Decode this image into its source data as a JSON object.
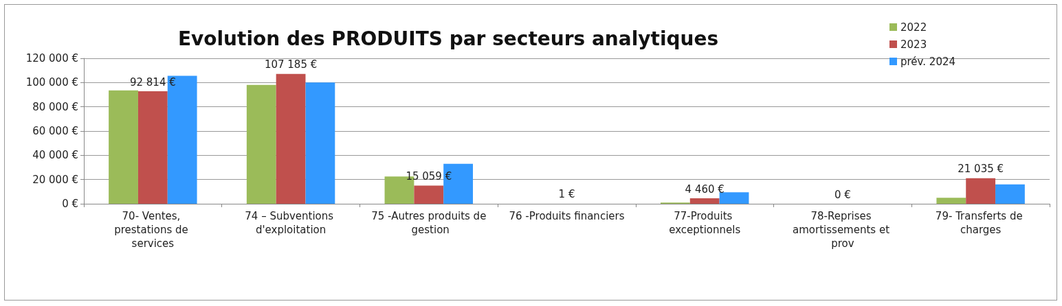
{
  "chart_data": {
    "type": "bar",
    "title": "Evolution des PRODUITS par secteurs analytiques",
    "categories": [
      "70- Ventes, prestations de services",
      "74 – Subventions d'exploitation",
      "75 -Autres produits de gestion",
      "76 -Produits financiers",
      "77-Produits exceptionnels",
      "78-Reprises amortissements et prov",
      "79- Transferts de charges"
    ],
    "series": [
      {
        "name": "2022",
        "color": "#9bbb59",
        "values": [
          93500,
          98000,
          22500,
          0,
          1000,
          0,
          5000
        ]
      },
      {
        "name": "2023",
        "color": "#c0504d",
        "values": [
          92814,
          107185,
          15059,
          1,
          4460,
          0,
          21035
        ],
        "value_labels": [
          "92 814 €",
          "107 185 €",
          "15 059 €",
          "1 €",
          "4 460 €",
          "0 €",
          "21 035 €"
        ]
      },
      {
        "name": "prév. 2024",
        "color": "#3399ff",
        "values": [
          105500,
          100000,
          33000,
          0,
          9500,
          0,
          16000
        ]
      }
    ],
    "ylim": [
      0,
      120000
    ],
    "yticks": [
      {
        "value": 0,
        "label": "0 €"
      },
      {
        "value": 20000,
        "label": "20 000 €"
      },
      {
        "value": 40000,
        "label": "40 000 €"
      },
      {
        "value": 60000,
        "label": "60 000 €"
      },
      {
        "value": 80000,
        "label": "80 000 €"
      },
      {
        "value": 100000,
        "label": "100 000 €"
      },
      {
        "value": 120000,
        "label": "120 000 €"
      }
    ],
    "grid": "y",
    "legend": "top right"
  }
}
